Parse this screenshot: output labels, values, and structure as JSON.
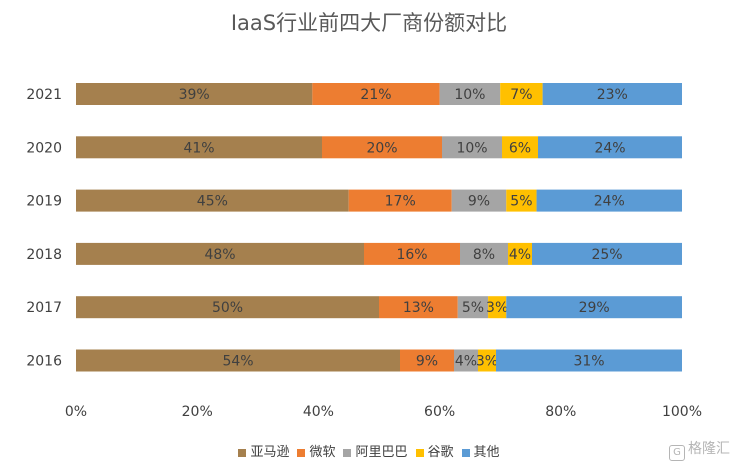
{
  "chart_data": {
    "type": "bar",
    "orientation": "horizontal",
    "stacked": true,
    "title": "IaaS行业前四大厂商份额对比",
    "categories": [
      "2021",
      "2020",
      "2019",
      "2018",
      "2017",
      "2016"
    ],
    "series": [
      {
        "name": "亚马逊",
        "color": "#A5804E",
        "values": [
          39,
          41,
          45,
          48,
          50,
          54
        ],
        "labels": [
          "39%",
          "41%",
          "45%",
          "48%",
          "50%",
          "54%"
        ]
      },
      {
        "name": "微软",
        "color": "#ED7D31",
        "values": [
          21,
          20,
          17,
          16,
          13,
          9
        ],
        "labels": [
          "21%",
          "20%",
          "17%",
          "16%",
          "13%",
          "9%"
        ]
      },
      {
        "name": "阿里巴巴",
        "color": "#A5A5A5",
        "values": [
          10,
          10,
          9,
          8,
          5,
          4
        ],
        "labels": [
          "10%",
          "10%",
          "9%",
          "8%",
          "5%",
          "4%"
        ]
      },
      {
        "name": "谷歌",
        "color": "#FFC000",
        "values": [
          7,
          6,
          5,
          4,
          3,
          3
        ],
        "labels": [
          "7%",
          "6%",
          "5%",
          "4%",
          "3%",
          "3%"
        ]
      },
      {
        "name": "其他",
        "color": "#5B9BD5",
        "values": [
          23,
          24,
          24,
          25,
          29,
          31
        ],
        "labels": [
          "23%",
          "24%",
          "24%",
          "25%",
          "29%",
          "31%"
        ]
      }
    ],
    "xlim": [
      0,
      100
    ],
    "xticks": [
      0,
      20,
      40,
      60,
      80,
      100
    ],
    "xtick_labels": [
      "0%",
      "20%",
      "40%",
      "60%",
      "80%",
      "100%"
    ],
    "grid": false,
    "legend_position": "bottom"
  },
  "watermark": {
    "badge": "G",
    "text": "格隆汇"
  }
}
